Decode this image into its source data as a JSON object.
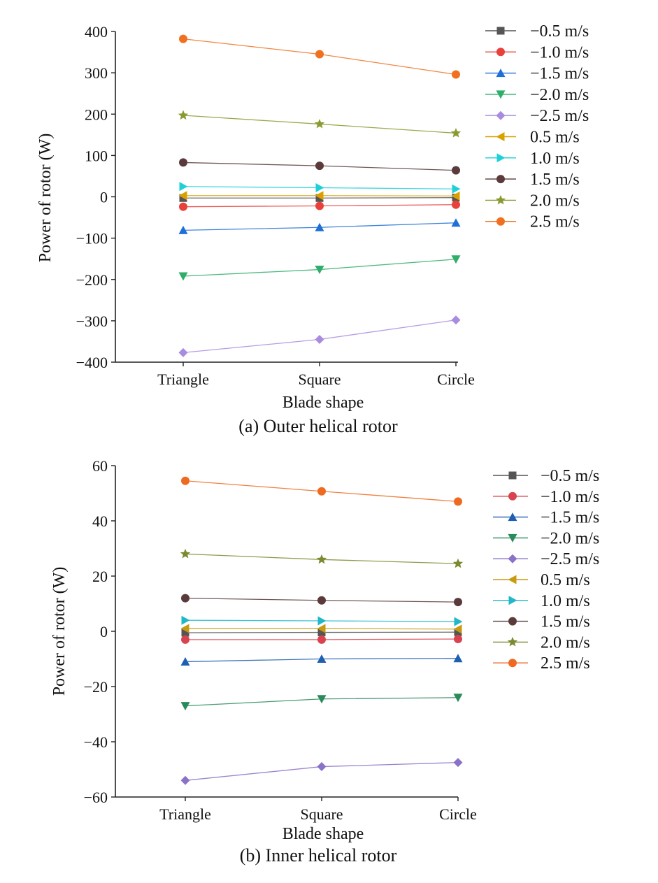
{
  "chart_data": [
    {
      "type": "line",
      "caption": "(a) Outer helical rotor",
      "xlabel": "Blade shape",
      "ylabel": "Power of rotor (W)",
      "categories": [
        "Triangle",
        "Square",
        "Circle"
      ],
      "ylim": [
        -400,
        400
      ],
      "yticks": [
        400,
        300,
        200,
        100,
        0,
        -100,
        -200,
        -300,
        -400
      ],
      "ytick_labels": [
        "400",
        "300",
        "200",
        "100",
        "0",
        "−100",
        "−200",
        "−300",
        "−400"
      ],
      "legend_position": "right",
      "series": [
        {
          "name": "−0.5 m/s",
          "values": [
            -3,
            -3,
            -2
          ],
          "color": "#555555",
          "marker": "square"
        },
        {
          "name": "−1.0 m/s",
          "values": [
            -24,
            -22,
            -19
          ],
          "color": "#e8403a",
          "marker": "circle"
        },
        {
          "name": "−1.5 m/s",
          "values": [
            -81,
            -74,
            -63
          ],
          "color": "#1f6fd6",
          "marker": "triangle-up"
        },
        {
          "name": "−2.0 m/s",
          "values": [
            -192,
            -176,
            -151
          ],
          "color": "#2fae6a",
          "marker": "triangle-down"
        },
        {
          "name": "−2.5 m/s",
          "values": [
            -377,
            -345,
            -298
          ],
          "color": "#a98be0",
          "marker": "diamond"
        },
        {
          "name": "0.5 m/s",
          "values": [
            3,
            3,
            2
          ],
          "color": "#d9a000",
          "marker": "triangle-left"
        },
        {
          "name": "1.0 m/s",
          "values": [
            25,
            22,
            19
          ],
          "color": "#1fd0d8",
          "marker": "triangle-right"
        },
        {
          "name": "1.5 m/s",
          "values": [
            83,
            75,
            64
          ],
          "color": "#5a3a3a",
          "marker": "circle"
        },
        {
          "name": "2.0 m/s",
          "values": [
            197,
            176,
            154
          ],
          "color": "#8a9a30",
          "marker": "star"
        },
        {
          "name": "2.5 m/s",
          "values": [
            382,
            345,
            296
          ],
          "color": "#f07020",
          "marker": "circle"
        }
      ]
    },
    {
      "type": "line",
      "caption": "(b) Inner helical rotor",
      "xlabel": "Blade shape",
      "ylabel": "Power of rotor (W)",
      "categories": [
        "Triangle",
        "Square",
        "Circle"
      ],
      "ylim": [
        -60,
        60
      ],
      "yticks": [
        60,
        40,
        20,
        0,
        -20,
        -40,
        -60
      ],
      "ytick_labels": [
        "60",
        "40",
        "20",
        "0",
        "−20",
        "−40",
        "−60"
      ],
      "legend_position": "right",
      "series": [
        {
          "name": "−0.5 m/s",
          "values": [
            -0.5,
            -0.4,
            -0.3
          ],
          "color": "#555555",
          "marker": "square"
        },
        {
          "name": "−1.0 m/s",
          "values": [
            -3,
            -3,
            -2.8
          ],
          "color": "#d9434f",
          "marker": "circle"
        },
        {
          "name": "−1.5 m/s",
          "values": [
            -11,
            -10,
            -9.8
          ],
          "color": "#1f5fb0",
          "marker": "triangle-up"
        },
        {
          "name": "−2.0 m/s",
          "values": [
            -27,
            -24.5,
            -24
          ],
          "color": "#2a8a5a",
          "marker": "triangle-down"
        },
        {
          "name": "−2.5 m/s",
          "values": [
            -54,
            -49,
            -47.5
          ],
          "color": "#8a72c8",
          "marker": "diamond"
        },
        {
          "name": "0.5 m/s",
          "values": [
            1,
            1,
            0.8
          ],
          "color": "#c89a10",
          "marker": "triangle-left"
        },
        {
          "name": "1.0 m/s",
          "values": [
            4,
            3.8,
            3.5
          ],
          "color": "#20b8c8",
          "marker": "triangle-right"
        },
        {
          "name": "1.5 m/s",
          "values": [
            12,
            11.2,
            10.6
          ],
          "color": "#5a3a3a",
          "marker": "circle"
        },
        {
          "name": "2.0 m/s",
          "values": [
            28,
            26,
            24.5
          ],
          "color": "#7a8a30",
          "marker": "star"
        },
        {
          "name": "2.5 m/s",
          "values": [
            54.5,
            50.7,
            47
          ],
          "color": "#ee6a20",
          "marker": "circle"
        }
      ],
      "override_colors_note": ""
    }
  ]
}
